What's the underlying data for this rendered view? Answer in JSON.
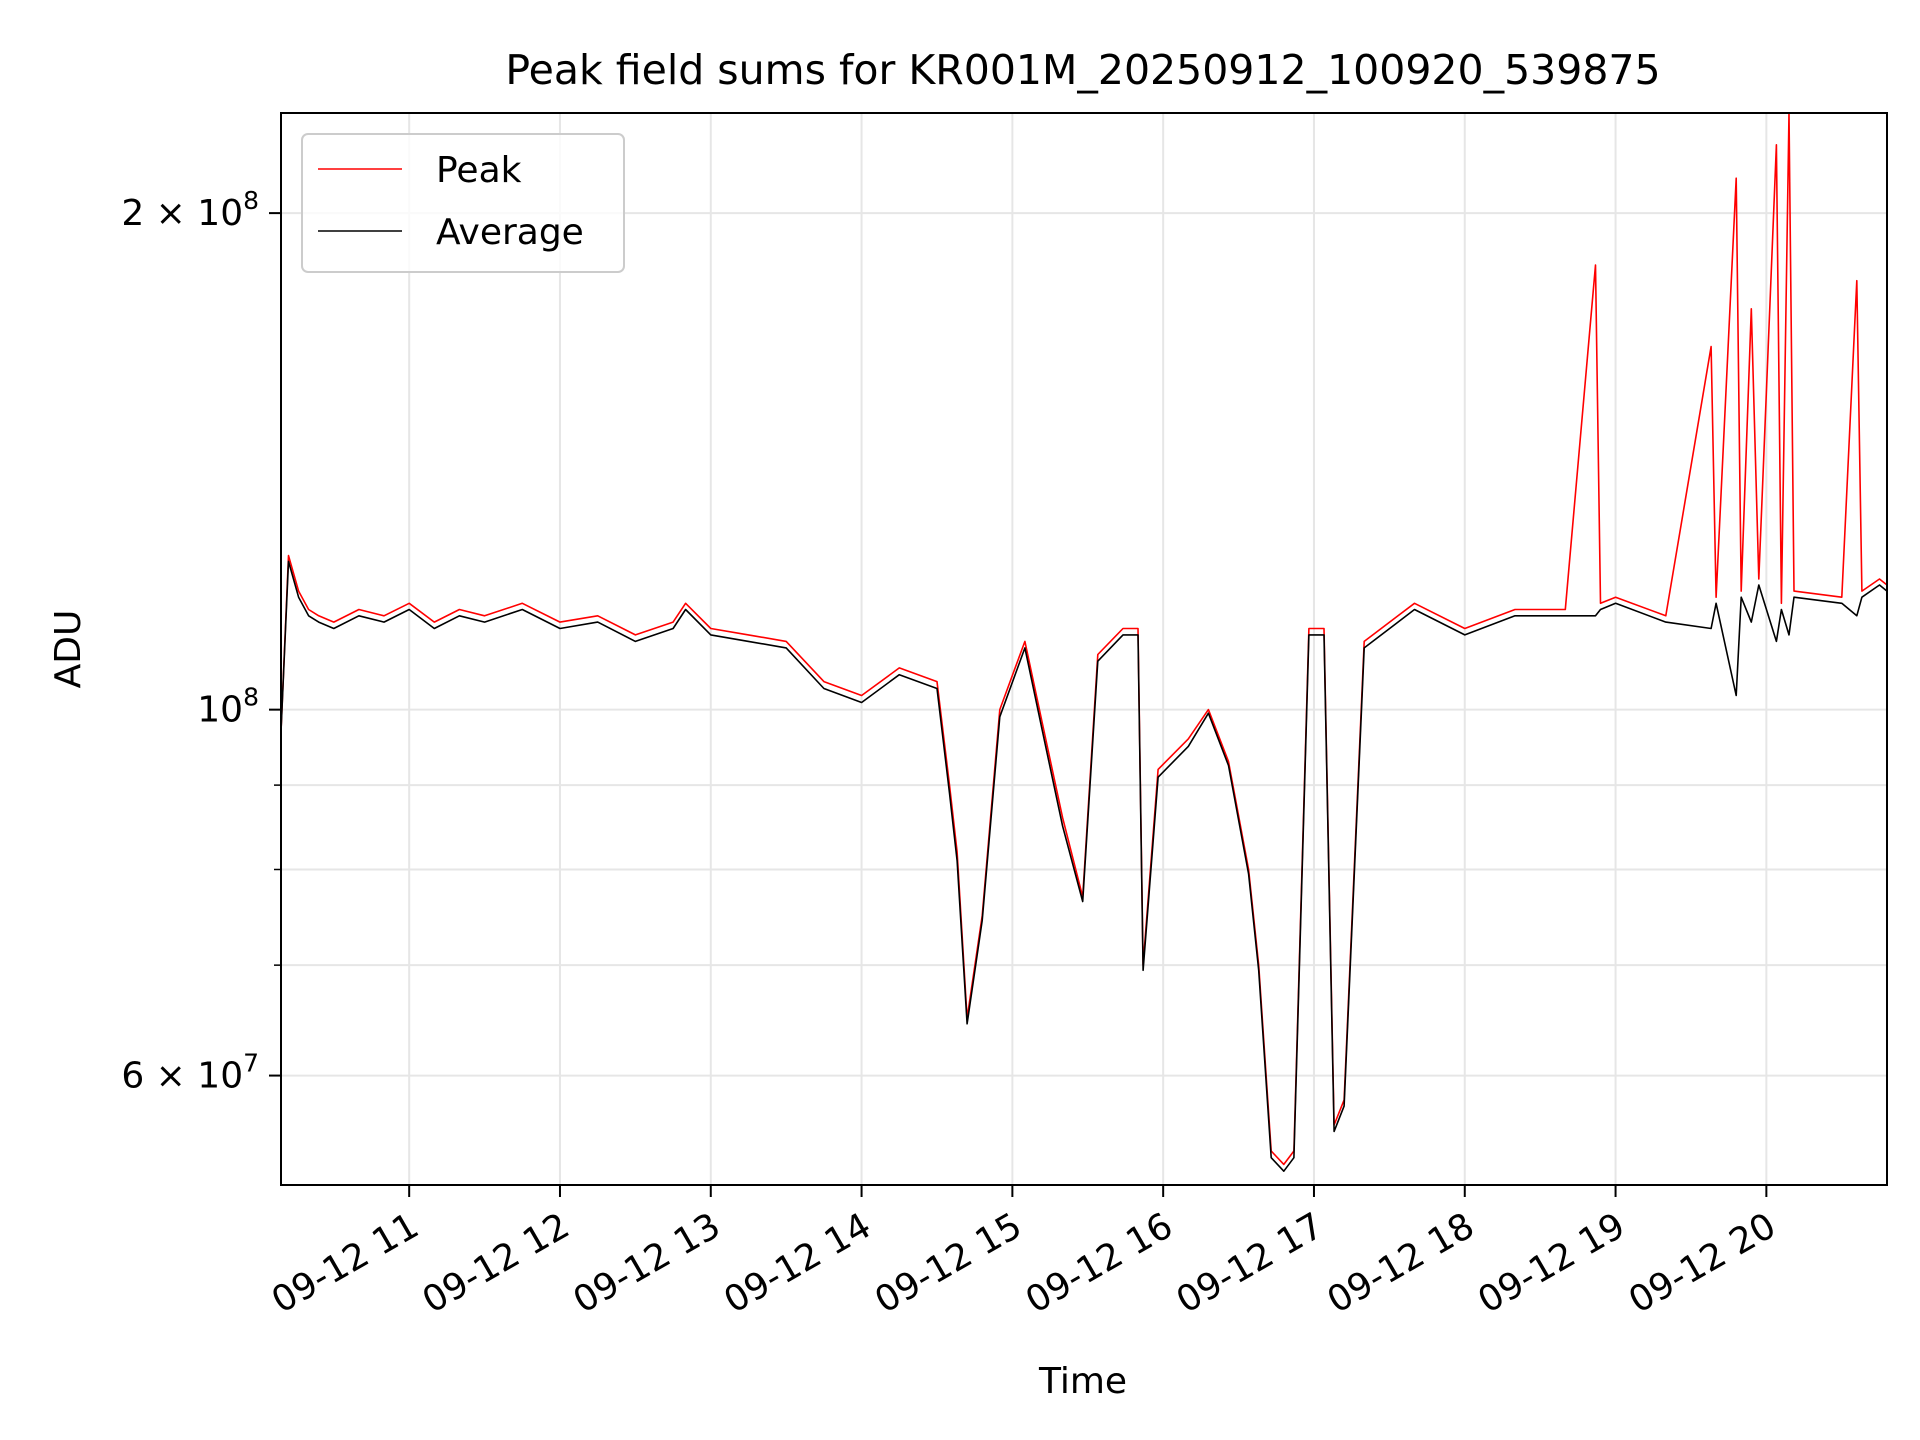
{
  "chart_data": {
    "type": "line",
    "title": "Peak field sums for KR001M_20250912_100920_539875",
    "xlabel": "Time",
    "ylabel": "ADU",
    "x_scale": "time",
    "y_scale": "log",
    "xlim": [
      "2025-09-12T10:09",
      "2025-09-12T20:48"
    ],
    "ylim": [
      51500000,
      230000000
    ],
    "x_ticks": [
      "09-12 11",
      "09-12 12",
      "09-12 13",
      "09-12 14",
      "09-12 15",
      "09-12 16",
      "09-12 17",
      "09-12 18",
      "09-12 19",
      "09-12 20"
    ],
    "y_ticks": [
      {
        "value": 60000000,
        "mantissa": "6",
        "exponent": "7"
      },
      {
        "value": 100000000,
        "mantissa": "",
        "exponent": "8"
      },
      {
        "value": 200000000,
        "mantissa": "2",
        "exponent": "8"
      }
    ],
    "y_minor_ticks": [
      70000000,
      80000000,
      90000000
    ],
    "grid": true,
    "legend_position": "upper left",
    "series": [
      {
        "name": "Peak",
        "color": "#ff0000",
        "points": [
          [
            "2025-09-12T10:09",
            97000000
          ],
          [
            "2025-09-12T10:12",
            124000000
          ],
          [
            "2025-09-12T10:16",
            118000000
          ],
          [
            "2025-09-12T10:20",
            115000000
          ],
          [
            "2025-09-12T10:24",
            114000000
          ],
          [
            "2025-09-12T10:30",
            113000000
          ],
          [
            "2025-09-12T10:40",
            115000000
          ],
          [
            "2025-09-12T10:50",
            114000000
          ],
          [
            "2025-09-12T11:00",
            116000000
          ],
          [
            "2025-09-12T11:10",
            113000000
          ],
          [
            "2025-09-12T11:20",
            115000000
          ],
          [
            "2025-09-12T11:30",
            114000000
          ],
          [
            "2025-09-12T11:45",
            116000000
          ],
          [
            "2025-09-12T12:00",
            113000000
          ],
          [
            "2025-09-12T12:15",
            114000000
          ],
          [
            "2025-09-12T12:30",
            111000000
          ],
          [
            "2025-09-12T12:45",
            113000000
          ],
          [
            "2025-09-12T12:50",
            116000000
          ],
          [
            "2025-09-12T13:00",
            112000000
          ],
          [
            "2025-09-12T13:15",
            111000000
          ],
          [
            "2025-09-12T13:30",
            110000000
          ],
          [
            "2025-09-12T13:45",
            104000000
          ],
          [
            "2025-09-12T14:00",
            102000000
          ],
          [
            "2025-09-12T14:15",
            106000000
          ],
          [
            "2025-09-12T14:30",
            104000000
          ],
          [
            "2025-09-12T14:35",
            90000000
          ],
          [
            "2025-09-12T14:38",
            82000000
          ],
          [
            "2025-09-12T14:42",
            65000000
          ],
          [
            "2025-09-12T14:48",
            75000000
          ],
          [
            "2025-09-12T14:55",
            100000000
          ],
          [
            "2025-09-12T15:05",
            110000000
          ],
          [
            "2025-09-12T15:12",
            98000000
          ],
          [
            "2025-09-12T15:20",
            86000000
          ],
          [
            "2025-09-12T15:28",
            77000000
          ],
          [
            "2025-09-12T15:34",
            108000000
          ],
          [
            "2025-09-12T15:44",
            112000000
          ],
          [
            "2025-09-12T15:50",
            112000000
          ],
          [
            "2025-09-12T15:52",
            70000000
          ],
          [
            "2025-09-12T15:58",
            92000000
          ],
          [
            "2025-09-12T16:10",
            96000000
          ],
          [
            "2025-09-12T16:18",
            100000000
          ],
          [
            "2025-09-12T16:26",
            93000000
          ],
          [
            "2025-09-12T16:34",
            80000000
          ],
          [
            "2025-09-12T16:38",
            70000000
          ],
          [
            "2025-09-12T16:43",
            54000000
          ],
          [
            "2025-09-12T16:48",
            53000000
          ],
          [
            "2025-09-12T16:52",
            54000000
          ],
          [
            "2025-09-12T16:58",
            112000000
          ],
          [
            "2025-09-12T17:04",
            112000000
          ],
          [
            "2025-09-12T17:08",
            56000000
          ],
          [
            "2025-09-12T17:12",
            58000000
          ],
          [
            "2025-09-12T17:20",
            110000000
          ],
          [
            "2025-09-12T17:40",
            116000000
          ],
          [
            "2025-09-12T18:00",
            112000000
          ],
          [
            "2025-09-12T18:20",
            115000000
          ],
          [
            "2025-09-12T18:40",
            115000000
          ],
          [
            "2025-09-12T18:52",
            186000000
          ],
          [
            "2025-09-12T18:54",
            116000000
          ],
          [
            "2025-09-12T19:00",
            117000000
          ],
          [
            "2025-09-12T19:20",
            114000000
          ],
          [
            "2025-09-12T19:38",
            166000000
          ],
          [
            "2025-09-12T19:40",
            117000000
          ],
          [
            "2025-09-12T19:48",
            210000000
          ],
          [
            "2025-09-12T19:50",
            118000000
          ],
          [
            "2025-09-12T19:54",
            175000000
          ],
          [
            "2025-09-12T19:57",
            120000000
          ],
          [
            "2025-09-12T20:04",
            220000000
          ],
          [
            "2025-09-12T20:06",
            116000000
          ],
          [
            "2025-09-12T20:09",
            230000000
          ],
          [
            "2025-09-12T20:11",
            118000000
          ],
          [
            "2025-09-12T20:30",
            117000000
          ],
          [
            "2025-09-12T20:36",
            182000000
          ],
          [
            "2025-09-12T20:38",
            118000000
          ],
          [
            "2025-09-12T20:45",
            120000000
          ],
          [
            "2025-09-12T20:48",
            119000000
          ]
        ]
      },
      {
        "name": "Average",
        "color": "#000000",
        "points": [
          [
            "2025-09-12T10:09",
            97000000
          ],
          [
            "2025-09-12T10:12",
            123000000
          ],
          [
            "2025-09-12T10:16",
            117000000
          ],
          [
            "2025-09-12T10:20",
            114000000
          ],
          [
            "2025-09-12T10:24",
            113000000
          ],
          [
            "2025-09-12T10:30",
            112000000
          ],
          [
            "2025-09-12T10:40",
            114000000
          ],
          [
            "2025-09-12T10:50",
            113000000
          ],
          [
            "2025-09-12T11:00",
            115000000
          ],
          [
            "2025-09-12T11:10",
            112000000
          ],
          [
            "2025-09-12T11:20",
            114000000
          ],
          [
            "2025-09-12T11:30",
            113000000
          ],
          [
            "2025-09-12T11:45",
            115000000
          ],
          [
            "2025-09-12T12:00",
            112000000
          ],
          [
            "2025-09-12T12:15",
            113000000
          ],
          [
            "2025-09-12T12:30",
            110000000
          ],
          [
            "2025-09-12T12:45",
            112000000
          ],
          [
            "2025-09-12T12:50",
            115000000
          ],
          [
            "2025-09-12T13:00",
            111000000
          ],
          [
            "2025-09-12T13:15",
            110000000
          ],
          [
            "2025-09-12T13:30",
            109000000
          ],
          [
            "2025-09-12T13:45",
            103000000
          ],
          [
            "2025-09-12T14:00",
            101000000
          ],
          [
            "2025-09-12T14:15",
            105000000
          ],
          [
            "2025-09-12T14:30",
            103000000
          ],
          [
            "2025-09-12T14:35",
            89000000
          ],
          [
            "2025-09-12T14:38",
            81000000
          ],
          [
            "2025-09-12T14:42",
            64500000
          ],
          [
            "2025-09-12T14:48",
            74500000
          ],
          [
            "2025-09-12T14:55",
            99000000
          ],
          [
            "2025-09-12T15:05",
            109000000
          ],
          [
            "2025-09-12T15:12",
            97000000
          ],
          [
            "2025-09-12T15:20",
            85000000
          ],
          [
            "2025-09-12T15:28",
            76500000
          ],
          [
            "2025-09-12T15:34",
            107000000
          ],
          [
            "2025-09-12T15:44",
            111000000
          ],
          [
            "2025-09-12T15:50",
            111000000
          ],
          [
            "2025-09-12T15:52",
            69500000
          ],
          [
            "2025-09-12T15:58",
            91000000
          ],
          [
            "2025-09-12T16:10",
            95000000
          ],
          [
            "2025-09-12T16:18",
            99500000
          ],
          [
            "2025-09-12T16:26",
            92500000
          ],
          [
            "2025-09-12T16:34",
            79500000
          ],
          [
            "2025-09-12T16:38",
            69500000
          ],
          [
            "2025-09-12T16:43",
            53500000
          ],
          [
            "2025-09-12T16:48",
            52500000
          ],
          [
            "2025-09-12T16:52",
            53500000
          ],
          [
            "2025-09-12T16:58",
            111000000
          ],
          [
            "2025-09-12T17:04",
            111000000
          ],
          [
            "2025-09-12T17:08",
            55500000
          ],
          [
            "2025-09-12T17:12",
            57500000
          ],
          [
            "2025-09-12T17:20",
            109000000
          ],
          [
            "2025-09-12T17:40",
            115000000
          ],
          [
            "2025-09-12T18:00",
            111000000
          ],
          [
            "2025-09-12T18:20",
            114000000
          ],
          [
            "2025-09-12T18:40",
            114000000
          ],
          [
            "2025-09-12T18:52",
            114000000
          ],
          [
            "2025-09-12T18:54",
            115000000
          ],
          [
            "2025-09-12T19:00",
            116000000
          ],
          [
            "2025-09-12T19:20",
            113000000
          ],
          [
            "2025-09-12T19:38",
            112000000
          ],
          [
            "2025-09-12T19:40",
            116000000
          ],
          [
            "2025-09-12T19:48",
            102000000
          ],
          [
            "2025-09-12T19:50",
            117000000
          ],
          [
            "2025-09-12T19:54",
            113000000
          ],
          [
            "2025-09-12T19:57",
            119000000
          ],
          [
            "2025-09-12T20:04",
            110000000
          ],
          [
            "2025-09-12T20:06",
            115000000
          ],
          [
            "2025-09-12T20:09",
            111000000
          ],
          [
            "2025-09-12T20:11",
            117000000
          ],
          [
            "2025-09-12T20:30",
            116000000
          ],
          [
            "2025-09-12T20:36",
            114000000
          ],
          [
            "2025-09-12T20:38",
            117000000
          ],
          [
            "2025-09-12T20:45",
            119000000
          ],
          [
            "2025-09-12T20:48",
            118000000
          ]
        ]
      }
    ]
  }
}
